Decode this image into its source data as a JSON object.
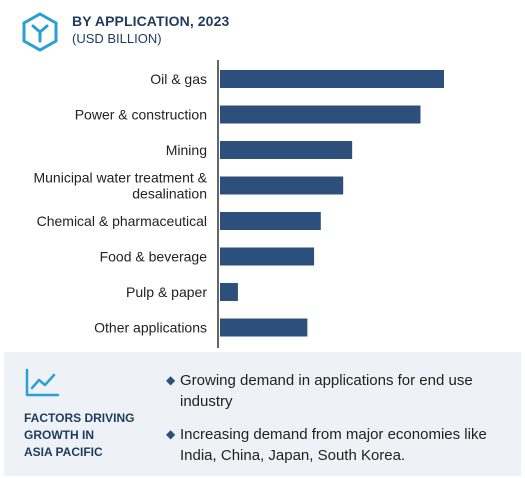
{
  "header": {
    "title": "BY APPLICATION, 2023",
    "subtitle": "(USD BILLION)",
    "logo_icon": "hexagon-y-logo-icon"
  },
  "chart_data": {
    "type": "bar",
    "orientation": "horizontal",
    "categories": [
      "Oil & gas",
      "Power & construction",
      "Mining",
      "Municipal water treatment & desalination",
      "Chemical & pharmaceutical",
      "Food & beverage",
      "Pulp & paper",
      "Other applications"
    ],
    "category_lines": [
      [
        "Oil & gas"
      ],
      [
        "Power & construction"
      ],
      [
        "Mining"
      ],
      [
        "Municipal water treatment &",
        "desalination"
      ],
      [
        "Chemical & pharmaceutical"
      ],
      [
        "Food & beverage"
      ],
      [
        "Pulp & paper"
      ],
      [
        "Other applications"
      ]
    ],
    "values": [
      100,
      89.5,
      59,
      55,
      45,
      42,
      8,
      39
    ],
    "title": "BY APPLICATION, 2023",
    "xlabel": "",
    "ylabel": "",
    "xlim": [
      0,
      100
    ],
    "grid": false,
    "bar_color": "#2c4f7c",
    "axis_color": "#333333"
  },
  "factors": {
    "heading": "FACTORS DRIVING\nGROWTH IN\nASIA PACIFIC",
    "icon": "line-chart-icon",
    "bullet_symbol": "◆",
    "bullets": [
      "Growing demand in applications for end use industry",
      "Increasing demand from major economies like India, China, Japan, South Korea."
    ],
    "accent_color": "#2c4f7c"
  }
}
